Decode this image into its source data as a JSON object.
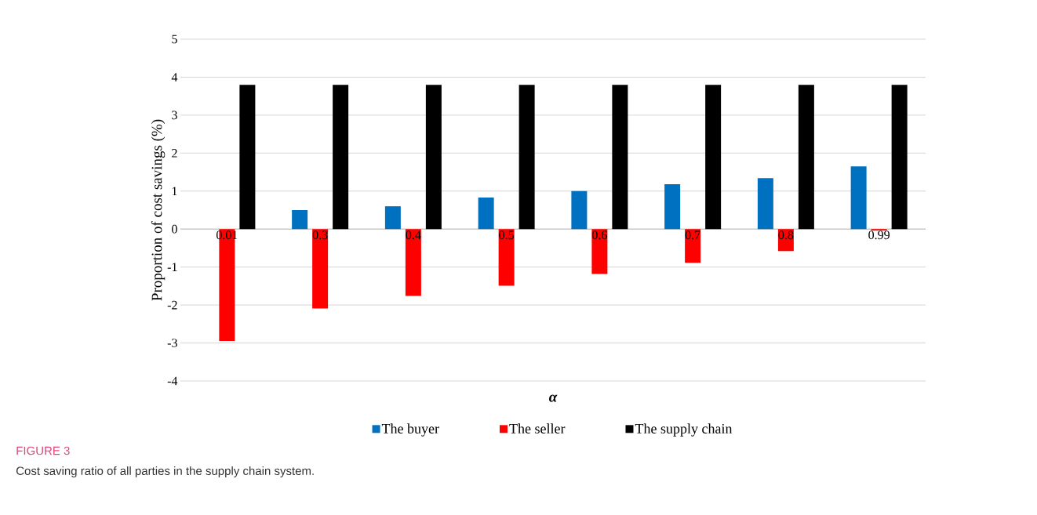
{
  "chart_data": {
    "type": "bar",
    "xlabel": "α",
    "ylabel": "Proportion of cost savings (%)",
    "categories": [
      "0.01",
      "0.3",
      "0.4",
      "0.5",
      "0.6",
      "0.7",
      "0.8",
      "0.99"
    ],
    "series": [
      {
        "name": "The buyer",
        "color": "#0070c0",
        "values": [
          0,
          0.5,
          0.6,
          0.83,
          1.0,
          1.18,
          1.34,
          1.65
        ]
      },
      {
        "name": "The seller",
        "color": "#ff0000",
        "values": [
          -2.95,
          -2.09,
          -1.76,
          -1.49,
          -1.18,
          -0.89,
          -0.58,
          -0.04
        ]
      },
      {
        "name": "The supply chain",
        "color": "#000000",
        "values": [
          3.8,
          3.8,
          3.8,
          3.8,
          3.8,
          3.8,
          3.8,
          3.8
        ]
      }
    ],
    "ylim": [
      -4,
      5
    ],
    "yticks": [
      -4,
      -3,
      -2,
      -1,
      0,
      1,
      2,
      3,
      4,
      5
    ],
    "grid": "y",
    "legend": "bottom",
    "annotations": [
      "FIGURE 3",
      "Cost saving ratio of all parties in the supply chain system."
    ]
  }
}
